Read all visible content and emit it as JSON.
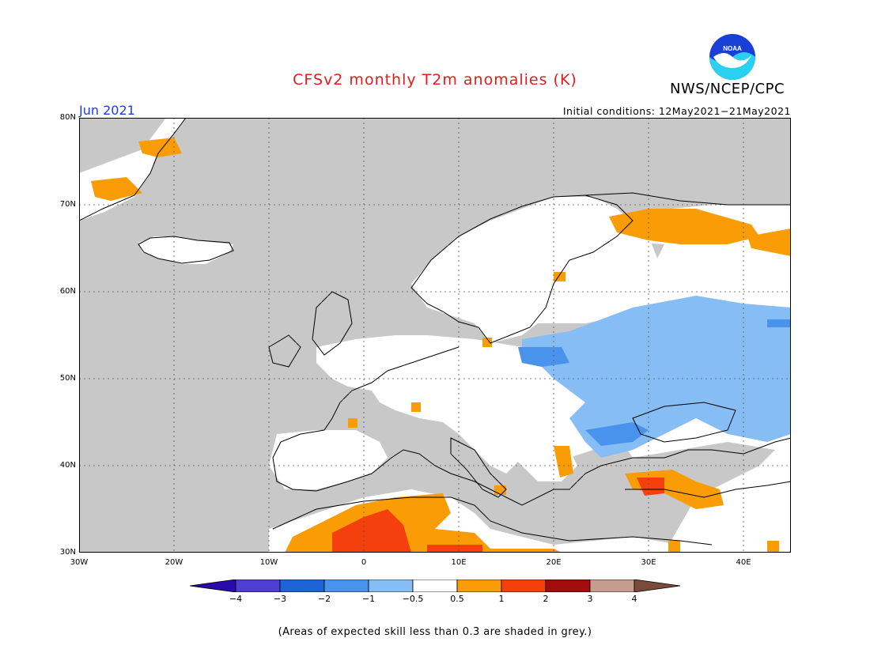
{
  "title": "CFSv2 monthly T2m anomalies (K)",
  "agency": "NWS/NCEP/CPC",
  "logo_text": "NOAA",
  "month": "Jun 2021",
  "initial_conditions": "Initial conditions: 12May2021−21May2021",
  "footnote": "(Areas of expected skill less than 0.3 are shaded in grey.)",
  "lat_labels": [
    "80N",
    "70N",
    "60N",
    "50N",
    "40N",
    "30N"
  ],
  "lon_labels": [
    "30W",
    "20W",
    "10W",
    "0",
    "10E",
    "20E",
    "30E",
    "40E"
  ],
  "colorbar": {
    "labels": [
      "−4",
      "−3",
      "−2",
      "−1",
      "−0.5",
      "0.5",
      "1",
      "2",
      "3",
      "4"
    ],
    "colors": [
      "#2a0aa8",
      "#4d3fd1",
      "#1f63d9",
      "#4a93ec",
      "#86bdf4",
      "#ffffff",
      "#f99c06",
      "#f5400d",
      "#a10c0c",
      "#c79c8c",
      "#7a4a3a"
    ]
  },
  "map_colors": {
    "skill_low_grey": "#c8c8c8",
    "neutral": "#ffffff",
    "warm_1": "#f99c06",
    "warm_2": "#f5400d",
    "cool_1": "#86bdf4",
    "cool_2": "#4a93ec"
  }
}
